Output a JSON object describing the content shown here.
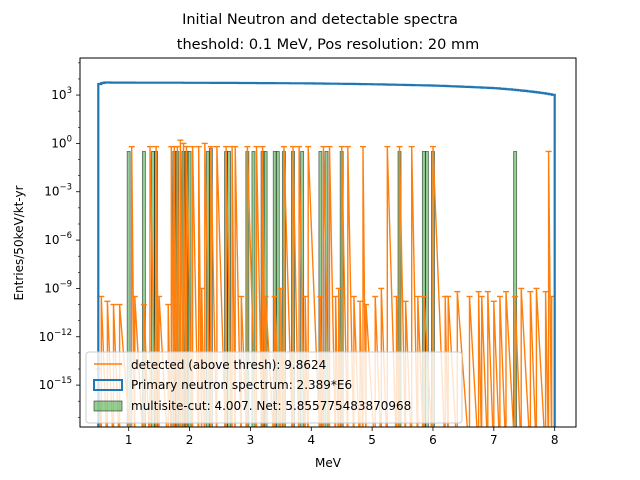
{
  "chart_data": {
    "type": "histogram",
    "title": "Initial Neutron and detectable spectra",
    "subtitle": "theshold: 0.1 MeV, Pos resolution: 20 mm",
    "xlabel": "MeV",
    "ylabel": "Entries/50keV/kt-yr",
    "xlim": [
      0.2,
      8.35
    ],
    "ylim_log10": [
      -17.6,
      5.3
    ],
    "yscale": "log",
    "x_ticks": [
      1,
      2,
      3,
      4,
      5,
      6,
      7,
      8
    ],
    "x_tick_labels": [
      "1",
      "2",
      "3",
      "4",
      "5",
      "6",
      "7",
      "8"
    ],
    "y_ticks_log10": [
      -15,
      -12,
      -9,
      -6,
      -3,
      0,
      3
    ],
    "y_tick_labels": [
      {
        "base": "10",
        "exp": "−15"
      },
      {
        "base": "10",
        "exp": "−12"
      },
      {
        "base": "10",
        "exp": "−9"
      },
      {
        "base": "10",
        "exp": "−6"
      },
      {
        "base": "10",
        "exp": "−3"
      },
      {
        "base": "10",
        "exp": "0"
      },
      {
        "base": "10",
        "exp": "3"
      }
    ],
    "legend": {
      "placement": "lower-left",
      "entries": [
        {
          "label": "detected (above thresh): 9.8624",
          "style": "line",
          "color": "#ff7f0e"
        },
        {
          "label": "Primary neutron spectrum: 2.389*E6",
          "style": "step",
          "color": "#1f77b4"
        },
        {
          "label": "multisite-cut: 4.007. Net: 5.855775483870968",
          "style": "patch",
          "color": "#2ca02c"
        }
      ]
    },
    "colors": {
      "primary": "#1f77b4",
      "detected": "#ff7f0e",
      "multisite": "#2ca02c"
    },
    "primary_series": {
      "name": "Primary neutron spectrum: 2.389*E6",
      "bin_width": 0.05,
      "x_start": 0.5,
      "x_end": 8.0,
      "points": [
        [
          0.5,
          4500
        ],
        [
          0.6,
          6000
        ],
        [
          1.0,
          5900
        ],
        [
          2.0,
          5800
        ],
        [
          3.0,
          5600
        ],
        [
          4.0,
          5300
        ],
        [
          5.0,
          4700
        ],
        [
          6.0,
          3900
        ],
        [
          7.0,
          2700
        ],
        [
          8.0,
          1000
        ]
      ]
    },
    "detected_series": {
      "name": "detected (above thresh): 9.8624",
      "x": [
        0.5,
        0.55,
        0.65,
        0.75,
        0.85,
        1.05,
        1.1,
        1.25,
        1.35,
        1.45,
        1.5,
        1.65,
        1.7,
        1.75,
        1.8,
        1.85,
        1.9,
        1.95,
        2.05,
        2.15,
        2.2,
        2.25,
        2.35,
        2.45,
        2.6,
        2.7,
        2.75,
        2.85,
        2.95,
        3.1,
        3.2,
        3.25,
        3.4,
        3.5,
        3.55,
        3.7,
        3.8,
        3.9,
        3.95,
        4.15,
        4.2,
        4.3,
        4.4,
        4.45,
        4.5,
        4.6,
        4.7,
        4.8,
        4.85,
        4.9,
        5.05,
        5.15,
        5.25,
        5.4,
        5.45,
        5.55,
        5.65,
        5.75,
        5.85,
        6.0,
        6.2,
        6.25,
        6.4,
        6.6,
        6.75,
        6.8,
        6.9,
        7.0,
        7.1,
        7.2,
        7.35,
        7.45,
        7.6,
        7.7,
        7.85,
        7.9,
        7.95
      ],
      "y_log10": [
        -14.0,
        -9.5,
        -9.8,
        -10.0,
        -10.0,
        -0.2,
        -9.5,
        -10.0,
        -0.2,
        -0.2,
        -9.5,
        -10.0,
        -0.2,
        -0.2,
        -0.2,
        0.2,
        0.0,
        -0.2,
        -0.2,
        -0.2,
        -9.0,
        0.0,
        -0.2,
        -0.2,
        -0.2,
        -0.2,
        -0.2,
        -9.5,
        -0.2,
        -0.2,
        -0.2,
        -9.5,
        -9.5,
        -9.0,
        -0.2,
        -0.2,
        -0.2,
        -9.5,
        -0.2,
        -9.5,
        -0.2,
        -0.2,
        -9.5,
        -9.0,
        -0.2,
        -0.2,
        -9.5,
        -9.8,
        -0.2,
        -10.0,
        -9.5,
        -9.0,
        -0.2,
        -9.5,
        -0.2,
        -9.8,
        -0.2,
        -9.5,
        -9.5,
        -0.2,
        -9.5,
        -9.5,
        -9.2,
        -9.5,
        -9.2,
        -9.5,
        -9.2,
        -9.8,
        -9.5,
        -9.2,
        -9.5,
        -9.0,
        -9.2,
        -9.0,
        -9.2,
        -0.5,
        -9.5
      ],
      "y_low_log10": -17.6
    },
    "multisite_series": {
      "name": "multisite-cut: 4.007. Net: 5.855775483870968",
      "bin_width": 0.05,
      "x": [
        1.0,
        1.25,
        1.4,
        1.45,
        1.75,
        1.8,
        1.9,
        1.95,
        2.0,
        2.3,
        2.35,
        2.6,
        2.65,
        2.95,
        3.05,
        3.2,
        3.25,
        3.4,
        3.45,
        3.55,
        3.7,
        3.85,
        4.15,
        4.25,
        4.5,
        5.45,
        5.85,
        5.9,
        6.0,
        7.35
      ],
      "y_log10": [
        -0.5,
        -0.5,
        -0.5,
        -0.5,
        -0.5,
        -0.5,
        -0.5,
        -0.5,
        -0.5,
        -0.5,
        -0.3,
        -0.5,
        -0.5,
        -0.5,
        -0.5,
        -0.5,
        -0.5,
        -0.5,
        -0.5,
        -0.5,
        -0.5,
        -0.5,
        -0.5,
        -0.5,
        -0.5,
        -0.5,
        -0.5,
        -0.5,
        -0.5,
        -0.5
      ]
    }
  }
}
